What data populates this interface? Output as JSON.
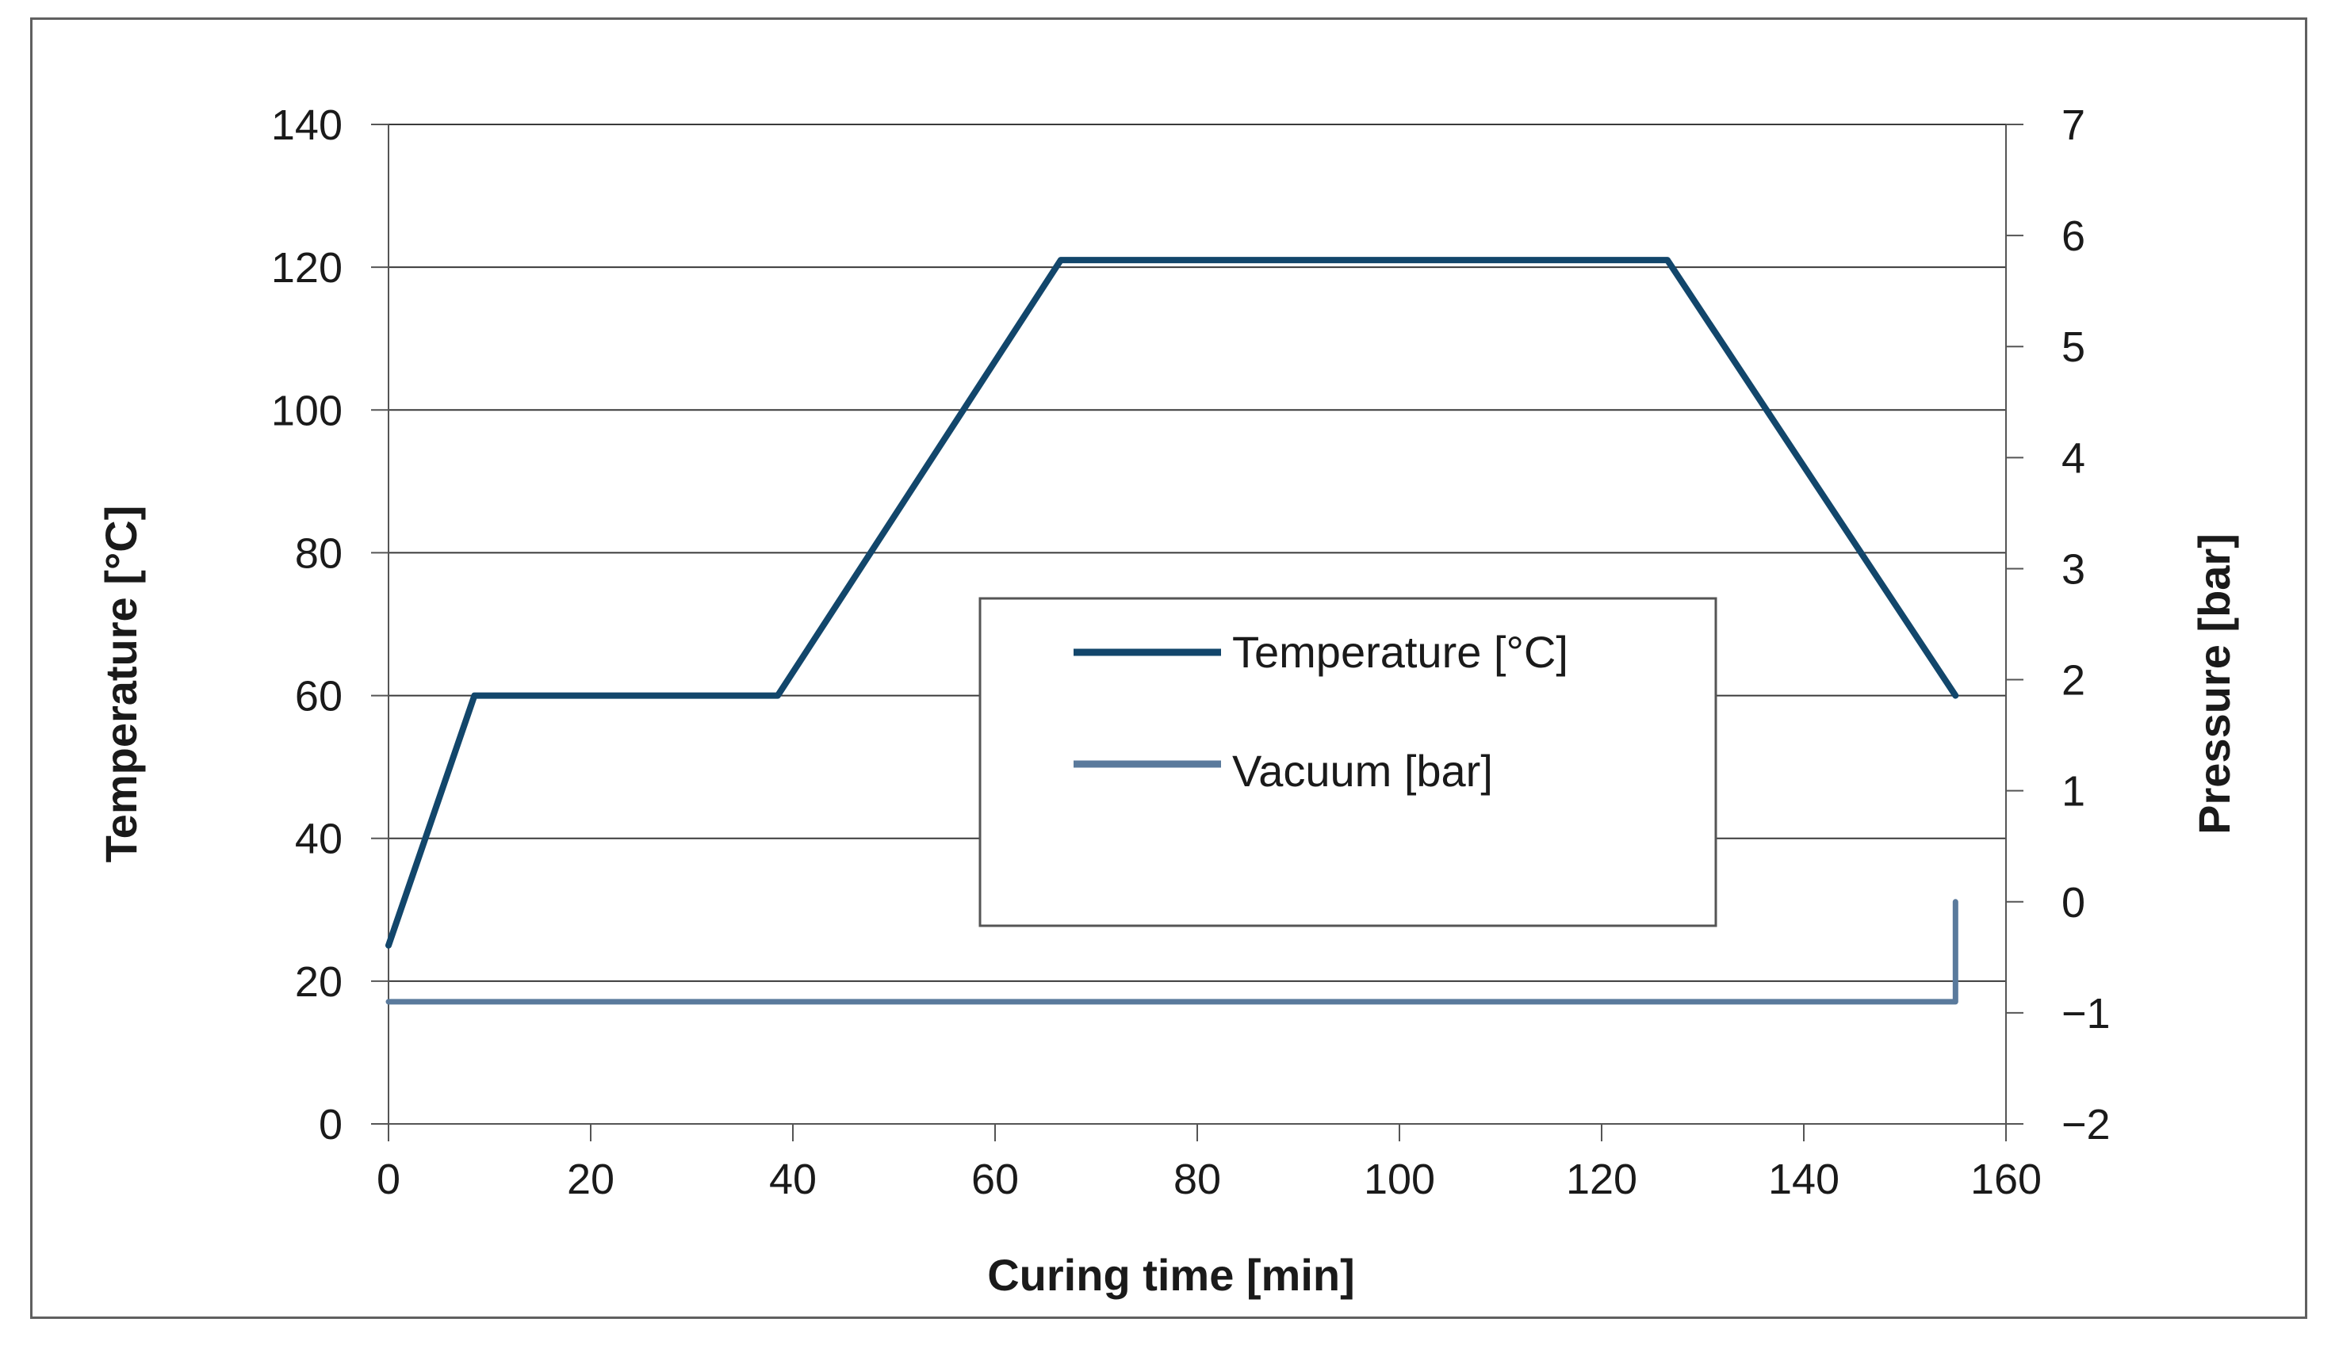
{
  "chart_data": {
    "type": "line",
    "title": "",
    "xlabel": "Curing time [min]",
    "ylabel": "Temperature [°C]",
    "y2label": "Pressure [bar]",
    "xlim": [
      0,
      160
    ],
    "ylim": [
      0,
      140
    ],
    "y2lim": [
      -2,
      7
    ],
    "xticks": [
      "0",
      "20",
      "40",
      "60",
      "80",
      "100",
      "120",
      "140",
      "160"
    ],
    "yticks": [
      "0",
      "20",
      "40",
      "60",
      "80",
      "100",
      "120",
      "140"
    ],
    "y2ticks": [
      "−2",
      "−1",
      "0",
      "1",
      "2",
      "3",
      "4",
      "5",
      "6",
      "7"
    ],
    "grid": true,
    "legend_position": "center-right",
    "series": [
      {
        "name": "Temperature [°C]",
        "axis": "left",
        "color": "#12466b",
        "x": [
          0,
          8.5,
          38.5,
          66.5,
          126.5,
          155
        ],
        "y": [
          25,
          60,
          60,
          121,
          121,
          60
        ]
      },
      {
        "name": "Vacuum [bar]",
        "axis": "right",
        "color": "#5a7a9c",
        "x": [
          0,
          155,
          155
        ],
        "y": [
          -0.9,
          -0.9,
          0
        ]
      }
    ]
  }
}
